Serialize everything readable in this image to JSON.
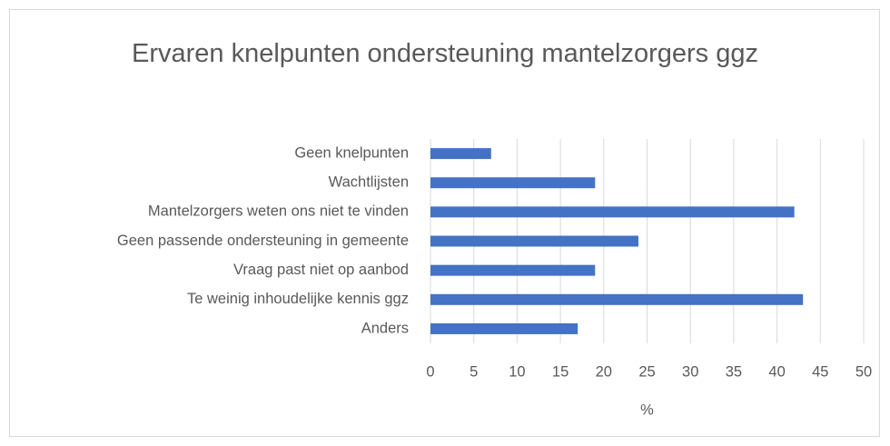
{
  "chart_data": {
    "type": "bar",
    "orientation": "horizontal",
    "title": "Ervaren knelpunten ondersteuning mantelzorgers ggz",
    "x_label": "%",
    "categories": [
      "Geen knelpunten",
      "Wachtlijsten",
      "Mantelzorgers weten ons niet te vinden",
      "Geen passende ondersteuning in gemeente",
      "Vraag past niet op aanbod",
      "Te weinig inhoudelijke kennis ggz",
      "Anders"
    ],
    "values": [
      7,
      19,
      42,
      24,
      19,
      43,
      17
    ],
    "color": "#4472c4",
    "xlim": [
      0,
      50
    ],
    "xticks": [
      0,
      5,
      10,
      15,
      20,
      25,
      30,
      35,
      40,
      45,
      50
    ],
    "grid": true
  }
}
